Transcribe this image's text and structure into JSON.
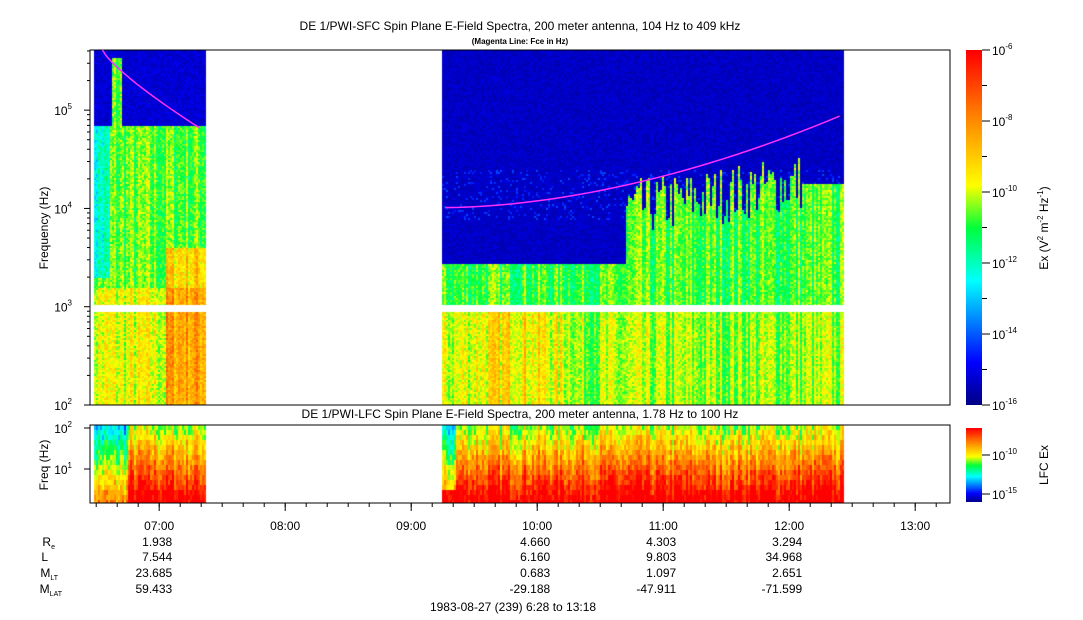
{
  "chart_data": [
    {
      "type": "heatmap",
      "title": "DE 1/PWI-SFC  Spin Plane E-Field Spectra, 200 meter antenna, 104 Hz to 409 kHz",
      "subtitle": "(Magenta Line: Fce in Hz)",
      "ylabel": "Frequency (Hz)",
      "yscale": "log",
      "ylim": [
        100,
        409000
      ],
      "yticks": [
        {
          "v": 100,
          "e": "2"
        },
        {
          "v": 1000,
          "e": "3"
        },
        {
          "v": 10000,
          "e": "4"
        },
        {
          "v": 100000,
          "e": "5"
        }
      ],
      "data_intervals_hours": [
        [
          6.467,
          7.37
        ],
        [
          9.23,
          12.42
        ]
      ],
      "fce_line": [
        {
          "t": [
            6.55,
            7.32
          ],
          "f": [
            409000,
            66000
          ]
        },
        {
          "t": [
            9.27,
            12.4
          ],
          "f": [
            10200,
            87000
          ]
        }
      ],
      "colorbar": {
        "label": "Ex (V",
        "label_sup1": "2",
        "label_mid": " m",
        "label_sup2": "-2",
        "label_mid2": " Hz",
        "label_sup3": "-1",
        "label_end": ")",
        "range_log": [
          -16,
          -6
        ],
        "ticks": [
          {
            "e": "-6"
          },
          {
            "e": "-8"
          },
          {
            "e": "-10"
          },
          {
            "e": "-12"
          },
          {
            "e": "-14"
          },
          {
            "e": "-16"
          }
        ]
      }
    },
    {
      "type": "heatmap",
      "title": "DE 1/PWI-LFC  Spin Plane E-Field Spectra, 200 meter antenna, 1.78 Hz to 100 Hz",
      "ylabel": "Freq (Hz)",
      "yscale": "log",
      "ylim": [
        1.78,
        100
      ],
      "yticks": [
        {
          "v": 10,
          "e": "1"
        },
        {
          "v": 100,
          "e": "2"
        }
      ],
      "data_intervals_hours": [
        [
          6.467,
          7.37
        ],
        [
          9.23,
          12.42
        ]
      ],
      "colorbar": {
        "label": "LFC Ex",
        "range_log": [
          -17,
          -7
        ],
        "ticks": [
          {
            "e": "-10"
          },
          {
            "e": "-15"
          }
        ]
      }
    }
  ],
  "xaxis": {
    "range_hours": [
      6.4667,
      13.3
    ],
    "ticks": [
      "07:00",
      "08:00",
      "09:00",
      "10:00",
      "11:00",
      "12:00",
      "13:00"
    ],
    "caption": "1983-08-27 (239) 6:28 to 13:18"
  },
  "ephemeris": {
    "labels": {
      "re": "R",
      "re_sub": "e",
      "l": "L",
      "mlt": "M",
      "mlt_sub": "LT",
      "mlat": "M",
      "mlat_sub": "LAT"
    },
    "columns": [
      {
        "time": "07:00",
        "re": "1.938",
        "l": "7.544",
        "mlt": "23.685",
        "mlat": "59.433"
      },
      {
        "time": "10:00",
        "re": "4.660",
        "l": "6.160",
        "mlt": "0.683",
        "mlat": "-29.188"
      },
      {
        "time": "11:00",
        "re": "4.303",
        "l": "9.803",
        "mlt": "1.097",
        "mlat": "-47.911"
      },
      {
        "time": "12:00",
        "re": "3.294",
        "l": "34.968",
        "mlt": "2.651",
        "mlat": "-71.599"
      }
    ]
  },
  "colors": {
    "fce": "#ff30ff",
    "background_low": "#00008c"
  }
}
